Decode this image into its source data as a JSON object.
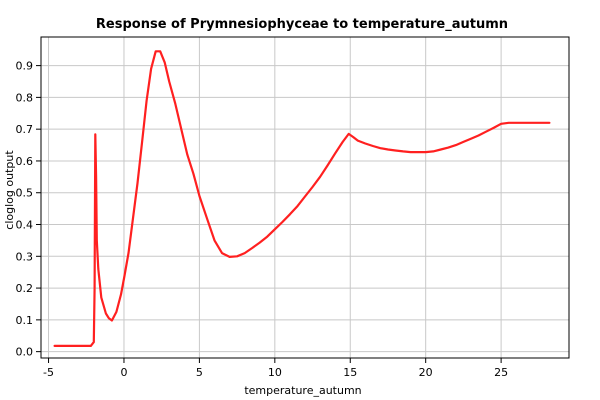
{
  "chart_data": {
    "type": "line",
    "title": "Response of Prymnesiophyceae to temperature_autumn",
    "xlabel": "temperature_autumn",
    "ylabel": "cloglog output",
    "xlim": [
      -5.5,
      29.5
    ],
    "ylim": [
      -0.02,
      0.99
    ],
    "xticks": [
      -5,
      0,
      5,
      10,
      15,
      20,
      25
    ],
    "yticks": [
      0.0,
      0.1,
      0.2,
      0.3,
      0.4,
      0.5,
      0.6,
      0.7,
      0.8,
      0.9
    ],
    "grid": true,
    "line_color": "#ff2020",
    "series": [
      {
        "x": [
          -4.6,
          -2.2,
          -2.0,
          -1.95,
          -1.9,
          -1.85,
          -1.8,
          -1.7,
          -1.5,
          -1.2,
          -1.0,
          -0.8,
          -0.5,
          -0.2,
          0.0,
          0.3,
          0.6,
          0.9,
          1.2,
          1.5,
          1.8,
          2.1,
          2.4,
          2.7,
          3.0,
          3.4,
          3.8,
          4.2,
          4.6,
          5.0,
          5.5,
          6.0,
          6.5,
          7.0,
          7.5,
          8.0,
          8.5,
          9.0,
          9.5,
          10.0,
          10.5,
          11.0,
          11.5,
          12.0,
          12.5,
          13.0,
          13.5,
          14.0,
          14.5,
          14.9,
          15.2,
          15.5,
          16.0,
          16.5,
          17.0,
          17.5,
          18.0,
          18.5,
          19.0,
          19.5,
          20.0,
          20.5,
          21.0,
          21.5,
          22.0,
          22.5,
          23.0,
          23.5,
          24.0,
          24.5,
          25.0,
          25.5,
          26.0,
          27.0,
          28.2
        ],
        "values": [
          0.018,
          0.018,
          0.03,
          0.2,
          0.684,
          0.55,
          0.35,
          0.26,
          0.17,
          0.12,
          0.105,
          0.098,
          0.125,
          0.18,
          0.23,
          0.31,
          0.42,
          0.53,
          0.66,
          0.79,
          0.89,
          0.945,
          0.945,
          0.91,
          0.85,
          0.78,
          0.7,
          0.62,
          0.56,
          0.49,
          0.42,
          0.35,
          0.31,
          0.298,
          0.3,
          0.31,
          0.326,
          0.343,
          0.362,
          0.385,
          0.408,
          0.432,
          0.458,
          0.488,
          0.518,
          0.55,
          0.586,
          0.624,
          0.66,
          0.685,
          0.675,
          0.664,
          0.655,
          0.647,
          0.64,
          0.636,
          0.633,
          0.63,
          0.628,
          0.628,
          0.628,
          0.63,
          0.636,
          0.642,
          0.65,
          0.66,
          0.67,
          0.68,
          0.692,
          0.704,
          0.717,
          0.72,
          0.72,
          0.72,
          0.72
        ]
      }
    ]
  }
}
